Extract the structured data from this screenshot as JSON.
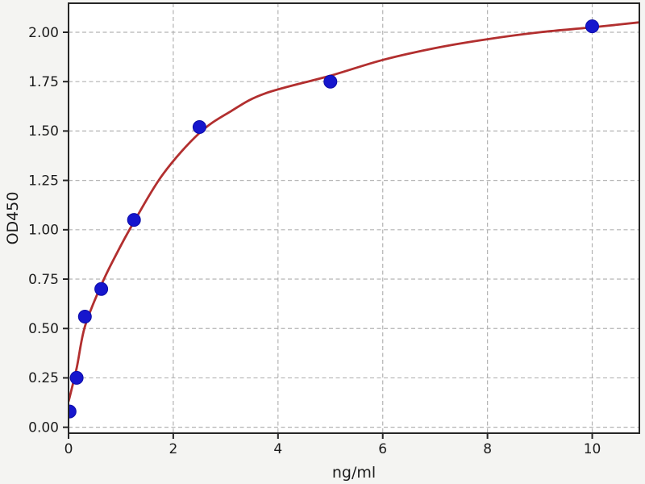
{
  "figure": {
    "background_color": "#f4f4f2",
    "plot_background_color": "#ffffff",
    "spine_color": "#262626",
    "grid_color": "#b3b3b3",
    "text_color": "#1c1c1c",
    "point_color": "#1616cd",
    "curve_color": "#b22f2f"
  },
  "chart_data": {
    "type": "scatter",
    "title": "",
    "xlabel": "ng/ml",
    "ylabel": "OD450",
    "xlim": [
      0,
      10.9
    ],
    "ylim": [
      -0.03,
      2.147
    ],
    "xticks": [
      0,
      2,
      4,
      6,
      8,
      10
    ],
    "xtick_labels": [
      "0",
      "2",
      "4",
      "6",
      "8",
      "10"
    ],
    "yticks": [
      0,
      0.25,
      0.5,
      0.75,
      1.0,
      1.25,
      1.5,
      1.75,
      2.0
    ],
    "ytick_labels": [
      "0.00",
      "0.25",
      "0.50",
      "0.75",
      "1.00",
      "1.25",
      "1.50",
      "1.75",
      "2.00"
    ],
    "grid": {
      "show": true,
      "style": "dashed"
    },
    "legend": "none",
    "series": [
      {
        "name": "standard-points",
        "type": "scatter",
        "marker": "circle",
        "marker_radius": 8,
        "color": "#1616cd",
        "x": [
          0.02,
          0.156,
          0.3125,
          0.625,
          1.25,
          2.5,
          5,
          10
        ],
        "y": [
          0.08,
          0.25,
          0.56,
          0.7,
          1.05,
          1.52,
          1.75,
          2.03
        ]
      },
      {
        "name": "fit-curve",
        "type": "line",
        "color": "#b22f2f",
        "stroke_width": 2.8,
        "x": [
          0,
          0.156,
          0.3125,
          0.625,
          0.9,
          1.25,
          1.8,
          2.5,
          3.1,
          3.75,
          5,
          6,
          7,
          8,
          9,
          10,
          10.9
        ],
        "y": [
          0.13,
          0.3,
          0.51,
          0.72,
          0.87,
          1.04,
          1.28,
          1.49,
          1.6,
          1.69,
          1.78,
          1.86,
          1.92,
          1.965,
          2.0,
          2.025,
          2.05
        ]
      }
    ]
  }
}
